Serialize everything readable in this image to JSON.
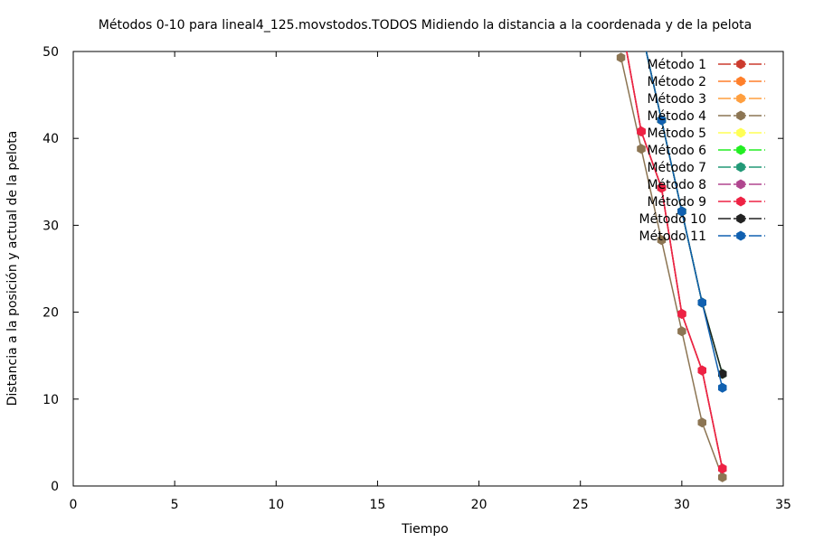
{
  "chart_data": {
    "type": "line",
    "title": "Métodos 0-10 para lineal4_125.movstodos.TODOS Midiendo la distancia a la coordenada y de la pelota",
    "xlabel": "Tiempo",
    "ylabel": "Distancia a la posición y actual de la pelota",
    "xlim": [
      0,
      35
    ],
    "ylim": [
      0,
      50
    ],
    "xticks": [
      0,
      5,
      10,
      15,
      20,
      25,
      30,
      35
    ],
    "yticks": [
      0,
      10,
      20,
      30,
      40,
      50
    ],
    "grid": false,
    "legend_position": "top-right",
    "series": [
      {
        "name": "Método 1",
        "color": "#cc3b2e",
        "x": [
          27,
          28,
          29,
          30,
          31,
          32
        ],
        "y": [
          53.6,
          40.8,
          34.3,
          19.8,
          13.3,
          2.0
        ]
      },
      {
        "name": "Método 2",
        "color": "#ff7f2a",
        "x": [
          27,
          28,
          29,
          30,
          31,
          32
        ],
        "y": [
          53.6,
          40.8,
          34.3,
          19.8,
          13.3,
          2.0
        ]
      },
      {
        "name": "Método 3",
        "color": "#ff9f3f",
        "x": [
          27,
          28,
          29,
          30,
          31,
          32
        ],
        "y": [
          53.6,
          40.8,
          34.3,
          19.8,
          13.3,
          2.0
        ]
      },
      {
        "name": "Método 4",
        "color": "#8c7553",
        "x": [
          27,
          28,
          29,
          30,
          31,
          32
        ],
        "y": [
          49.3,
          38.8,
          28.3,
          17.8,
          7.3,
          1.0
        ]
      },
      {
        "name": "Método 5",
        "color": "#ffff55",
        "x": [
          28,
          29,
          30,
          31,
          32
        ],
        "y": [
          52.6,
          42.1,
          31.6,
          21.1,
          12.9
        ]
      },
      {
        "name": "Método 6",
        "color": "#22ee22",
        "x": [
          28,
          29,
          30,
          31,
          32
        ],
        "y": [
          52.6,
          42.1,
          31.6,
          21.1,
          12.9
        ]
      },
      {
        "name": "Método 7",
        "color": "#229977",
        "x": [
          28,
          29,
          30,
          31,
          32
        ],
        "y": [
          52.6,
          42.1,
          31.6,
          21.1,
          12.9
        ]
      },
      {
        "name": "Método 8",
        "color": "#b0468f",
        "x": [
          27,
          28,
          29,
          30,
          31,
          32
        ],
        "y": [
          53.6,
          40.8,
          34.3,
          19.8,
          13.3,
          2.0
        ]
      },
      {
        "name": "Método 9",
        "color": "#ee2244",
        "x": [
          27,
          28,
          29,
          30,
          31,
          32
        ],
        "y": [
          53.6,
          40.8,
          34.3,
          19.8,
          13.3,
          2.0
        ]
      },
      {
        "name": "Método 10",
        "color": "#222222",
        "x": [
          28,
          29,
          30,
          31,
          32
        ],
        "y": [
          52.6,
          42.1,
          31.6,
          21.1,
          12.9
        ]
      },
      {
        "name": "Método 11",
        "color": "#1060b0",
        "x": [
          28,
          29,
          30,
          31,
          32
        ],
        "y": [
          52.6,
          42.1,
          31.6,
          21.1,
          11.3
        ]
      }
    ]
  }
}
